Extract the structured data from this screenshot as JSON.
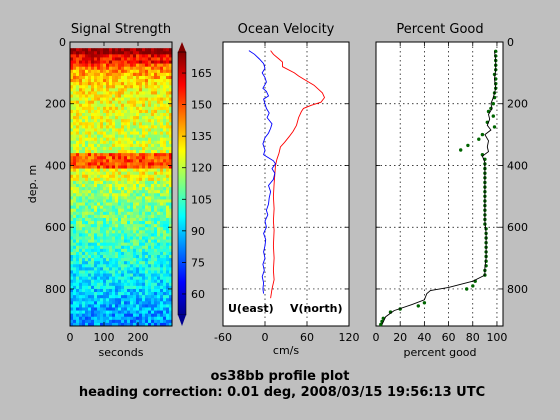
{
  "figure": {
    "title_line1": "os38bb profile plot",
    "title_line2": "heading correction:  0.01 deg, 2008/03/15 19:56:13 UTC",
    "background": "#bfbfbf"
  },
  "chart_data": [
    {
      "type": "heatmap",
      "title": "Signal Strength",
      "xlabel": "seconds",
      "ylabel": "dep. m",
      "xlim": [
        0,
        300
      ],
      "ylim": [
        920,
        0
      ],
      "x_ticks": [
        0,
        100,
        200
      ],
      "y_ticks": [
        0,
        200,
        400,
        600,
        800
      ],
      "colormap": "jet",
      "colorbar": {
        "range": [
          50,
          175
        ],
        "ticks": [
          60,
          75,
          90,
          105,
          120,
          135,
          150,
          165
        ],
        "extend": "both"
      },
      "notes": "data starts at ~20 m; strongest return 20-120 m, strong band near 370-400 m, weakest 700-920 m"
    },
    {
      "type": "line",
      "title": "Ocean Velocity",
      "xlabel": "cm/s",
      "xlim": [
        -60,
        120
      ],
      "ylim": [
        920,
        0
      ],
      "x_ticks": [
        -60,
        0,
        60,
        120
      ],
      "y_ticks": [
        0,
        200,
        400,
        600,
        800
      ],
      "grid": true,
      "series": [
        {
          "name": "U(east)",
          "color": "#ff0000",
          "points": [
            [
              8,
              28
            ],
            [
              12,
              40
            ],
            [
              20,
              55
            ],
            [
              25,
              65
            ],
            [
              25,
              80
            ],
            [
              42,
              100
            ],
            [
              48,
              110
            ],
            [
              55,
              120
            ],
            [
              70,
              140
            ],
            [
              82,
              165
            ],
            [
              85,
              180
            ],
            [
              80,
              195
            ],
            [
              66,
              205
            ],
            [
              55,
              215
            ],
            [
              52,
              225
            ],
            [
              48,
              245
            ],
            [
              45,
              270
            ],
            [
              40,
              290
            ],
            [
              35,
              305
            ],
            [
              28,
              325
            ],
            [
              22,
              340
            ],
            [
              20,
              360
            ],
            [
              17,
              380
            ],
            [
              15,
              400
            ],
            [
              14,
              430
            ],
            [
              13,
              460
            ],
            [
              12,
              500
            ],
            [
              13,
              540
            ],
            [
              12,
              580
            ],
            [
              13,
              610
            ],
            [
              12,
              660
            ],
            [
              13,
              700
            ],
            [
              12,
              740
            ],
            [
              13,
              770
            ],
            [
              10,
              800
            ],
            [
              8,
              830
            ]
          ]
        },
        {
          "name": "V(north)",
          "color": "#0000ff",
          "points": [
            [
              -23,
              28
            ],
            [
              -15,
              40
            ],
            [
              -8,
              55
            ],
            [
              -2,
              70
            ],
            [
              0,
              85
            ],
            [
              -4,
              100
            ],
            [
              0,
              115
            ],
            [
              2,
              130
            ],
            [
              -3,
              150
            ],
            [
              2,
              160
            ],
            [
              5,
              175
            ],
            [
              -2,
              185
            ],
            [
              0,
              200
            ],
            [
              2,
              215
            ],
            [
              6,
              230
            ],
            [
              3,
              245
            ],
            [
              10,
              265
            ],
            [
              8,
              280
            ],
            [
              5,
              295
            ],
            [
              0,
              310
            ],
            [
              -3,
              330
            ],
            [
              0,
              350
            ],
            [
              -2,
              365
            ],
            [
              5,
              375
            ],
            [
              12,
              385
            ],
            [
              15,
              395
            ],
            [
              10,
              410
            ],
            [
              14,
              425
            ],
            [
              12,
              445
            ],
            [
              5,
              465
            ],
            [
              8,
              485
            ],
            [
              6,
              505
            ],
            [
              5,
              525
            ],
            [
              2,
              545
            ],
            [
              4,
              560
            ],
            [
              0,
              580
            ],
            [
              2,
              600
            ],
            [
              -2,
              620
            ],
            [
              1,
              640
            ],
            [
              0,
              660
            ],
            [
              -2,
              680
            ],
            [
              0,
              700
            ],
            [
              -3,
              720
            ],
            [
              -1,
              740
            ],
            [
              -4,
              760
            ],
            [
              -2,
              780
            ],
            [
              -3,
              800
            ],
            [
              -2,
              815
            ]
          ]
        }
      ],
      "legend": {
        "placement": "bottom"
      }
    },
    {
      "type": "scatter",
      "title": "Percent Good",
      "xlabel": "percent good",
      "xlim": [
        0,
        105
      ],
      "ylim": [
        920,
        0
      ],
      "x_ticks": [
        0,
        20,
        40,
        60,
        80,
        100
      ],
      "y_ticks": [
        0,
        200,
        400,
        600,
        800
      ],
      "grid": true,
      "series": [
        {
          "name": "",
          "style": "dots",
          "color": "#006400",
          "points": [
            [
              99,
              30
            ],
            [
              99,
              45
            ],
            [
              99,
              60
            ],
            [
              99,
              75
            ],
            [
              99,
              90
            ],
            [
              98,
              105
            ],
            [
              99,
              120
            ],
            [
              99,
              135
            ],
            [
              99,
              150
            ],
            [
              98,
              165
            ],
            [
              98,
              180
            ],
            [
              97,
              200
            ],
            [
              95,
              215
            ],
            [
              93,
              225
            ],
            [
              97,
              240
            ],
            [
              92,
              260
            ],
            [
              98,
              275
            ],
            [
              88,
              300
            ],
            [
              85,
              315
            ],
            [
              76,
              335
            ],
            [
              70,
              350
            ],
            [
              88,
              365
            ],
            [
              90,
              380
            ],
            [
              90,
              395
            ],
            [
              90,
              410
            ],
            [
              90,
              425
            ],
            [
              90,
              440
            ],
            [
              90,
              455
            ],
            [
              90,
              470
            ],
            [
              90,
              485
            ],
            [
              90,
              500
            ],
            [
              90,
              515
            ],
            [
              90,
              530
            ],
            [
              90,
              545
            ],
            [
              90,
              560
            ],
            [
              90,
              575
            ],
            [
              90,
              590
            ],
            [
              91,
              605
            ],
            [
              91,
              620
            ],
            [
              91,
              635
            ],
            [
              91,
              650
            ],
            [
              91,
              665
            ],
            [
              91,
              680
            ],
            [
              91,
              695
            ],
            [
              91,
              710
            ],
            [
              91,
              725
            ],
            [
              90,
              740
            ],
            [
              90,
              755
            ],
            [
              82,
              775
            ],
            [
              80,
              790
            ],
            [
              75,
              800
            ],
            [
              40,
              845
            ],
            [
              35,
              855
            ],
            [
              20,
              865
            ],
            [
              12,
              875
            ],
            [
              6,
              895
            ],
            [
              5,
              905
            ],
            [
              4,
              915
            ]
          ]
        },
        {
          "name": "",
          "style": "line",
          "color": "#000000",
          "points": [
            [
              98,
              30
            ],
            [
              99,
              60
            ],
            [
              99,
              90
            ],
            [
              98,
              120
            ],
            [
              99,
              150
            ],
            [
              97,
              180
            ],
            [
              95,
              200
            ],
            [
              96,
              215
            ],
            [
              93,
              235
            ],
            [
              94,
              250
            ],
            [
              92,
              270
            ],
            [
              95,
              285
            ],
            [
              90,
              300
            ],
            [
              93,
              320
            ],
            [
              92,
              340
            ],
            [
              93,
              355
            ],
            [
              88,
              370
            ],
            [
              90,
              390
            ],
            [
              90,
              420
            ],
            [
              90,
              460
            ],
            [
              90,
              500
            ],
            [
              90,
              540
            ],
            [
              90,
              580
            ],
            [
              91,
              620
            ],
            [
              91,
              660
            ],
            [
              91,
              700
            ],
            [
              90,
              730
            ],
            [
              90,
              755
            ],
            [
              80,
              775
            ],
            [
              60,
              795
            ],
            [
              45,
              805
            ],
            [
              42,
              815
            ],
            [
              40,
              835
            ],
            [
              30,
              850
            ],
            [
              15,
              870
            ],
            [
              8,
              890
            ],
            [
              5,
              915
            ]
          ]
        }
      ]
    }
  ]
}
